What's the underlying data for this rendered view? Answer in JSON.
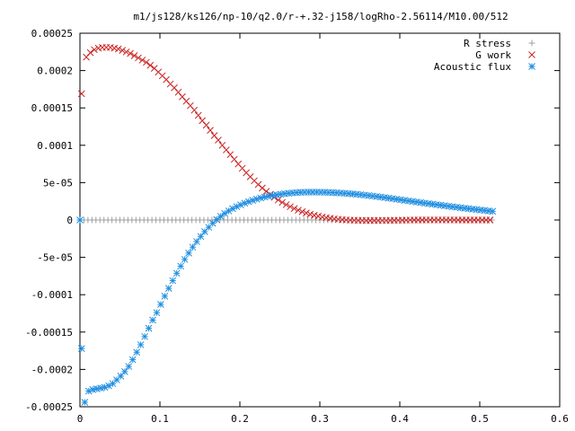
{
  "chart_data": {
    "type": "scatter",
    "title": "m1/js128/ks126/np-10/q2.0/r-+.32-j158/logRho-2.56114/M10.00/512",
    "xlim": [
      0,
      0.6
    ],
    "ylim": [
      -0.00025,
      0.00025
    ],
    "x_ticks": [
      {
        "value": 0,
        "label": "0"
      },
      {
        "value": 0.1,
        "label": "0.1"
      },
      {
        "value": 0.2,
        "label": "0.2"
      },
      {
        "value": 0.3,
        "label": "0.3"
      },
      {
        "value": 0.4,
        "label": "0.4"
      },
      {
        "value": 0.5,
        "label": "0.5"
      },
      {
        "value": 0.6,
        "label": "0.6"
      }
    ],
    "y_ticks": [
      {
        "value": 0.00025,
        "label": "0.00025"
      },
      {
        "value": 0.0002,
        "label": "0.0002"
      },
      {
        "value": 0.00015,
        "label": "0.00015"
      },
      {
        "value": 0.0001,
        "label": "0.0001"
      },
      {
        "value": 5e-05,
        "label": "5e-05"
      },
      {
        "value": 0,
        "label": "0"
      },
      {
        "value": -5e-05,
        "label": "-5e-05"
      },
      {
        "value": -0.0001,
        "label": "-0.0001"
      },
      {
        "value": -0.00015,
        "label": "-0.00015"
      },
      {
        "value": -0.0002,
        "label": "-0.0002"
      },
      {
        "value": -0.00025,
        "label": "-0.00025"
      }
    ],
    "grid": false,
    "legend_position": "top-right",
    "series": [
      {
        "name": "R stress",
        "marker": "plus",
        "color": "#a0a0a0",
        "x": [
          0,
          0.005,
          0.01,
          0.015,
          0.02,
          0.025,
          0.03,
          0.035,
          0.04,
          0.045,
          0.05,
          0.055,
          0.06,
          0.065,
          0.07,
          0.075,
          0.08,
          0.085,
          0.09,
          0.095,
          0.1,
          0.105,
          0.11,
          0.115,
          0.12,
          0.125,
          0.13,
          0.135,
          0.14,
          0.145,
          0.15,
          0.155,
          0.16,
          0.165,
          0.17,
          0.175,
          0.18,
          0.185,
          0.19,
          0.195,
          0.2,
          0.205,
          0.21,
          0.215,
          0.22,
          0.225,
          0.23,
          0.235,
          0.24,
          0.245,
          0.25,
          0.255,
          0.26,
          0.265,
          0.27,
          0.275,
          0.28,
          0.285,
          0.29,
          0.295,
          0.3,
          0.305,
          0.31,
          0.315,
          0.32,
          0.325,
          0.33,
          0.335,
          0.34,
          0.345,
          0.35,
          0.355,
          0.36,
          0.365,
          0.37,
          0.375,
          0.38,
          0.385,
          0.39,
          0.395,
          0.4,
          0.405,
          0.41,
          0.415,
          0.42,
          0.425,
          0.43,
          0.435,
          0.44,
          0.445,
          0.45,
          0.455,
          0.46,
          0.465,
          0.47,
          0.475,
          0.48,
          0.485,
          0.49,
          0.495,
          0.5,
          0.505,
          0.51,
          0.515
        ],
        "y": [
          0,
          0,
          0,
          0,
          0,
          0,
          0,
          0,
          0,
          0,
          0,
          0,
          0,
          0,
          0,
          0,
          0,
          0,
          0,
          0,
          0,
          0,
          0,
          0,
          0,
          0,
          0,
          0,
          0,
          0,
          0,
          0,
          0,
          0,
          0,
          0,
          0,
          0,
          0,
          0,
          0,
          0,
          0,
          0,
          0,
          0,
          0,
          0,
          0,
          0,
          0,
          0,
          0,
          0,
          0,
          0,
          0,
          0,
          0,
          0,
          0,
          0,
          0,
          0,
          0,
          0,
          0,
          0,
          0,
          0,
          0,
          0,
          0,
          0,
          0,
          0,
          0,
          0,
          0,
          0,
          0,
          0,
          0,
          0,
          0,
          0,
          0,
          0,
          0,
          0,
          0,
          0,
          0,
          0,
          0,
          0,
          0,
          0,
          0,
          0,
          0,
          0,
          0,
          0
        ]
      },
      {
        "name": "G work",
        "marker": "cross",
        "color": "#cc2222",
        "x": [
          0.002,
          0.008,
          0.013,
          0.018,
          0.023,
          0.028,
          0.033,
          0.038,
          0.043,
          0.048,
          0.053,
          0.058,
          0.063,
          0.068,
          0.073,
          0.078,
          0.083,
          0.088,
          0.093,
          0.098,
          0.103,
          0.108,
          0.113,
          0.118,
          0.123,
          0.128,
          0.133,
          0.138,
          0.143,
          0.148,
          0.153,
          0.158,
          0.163,
          0.168,
          0.173,
          0.178,
          0.183,
          0.188,
          0.193,
          0.198,
          0.203,
          0.208,
          0.213,
          0.218,
          0.223,
          0.228,
          0.233,
          0.238,
          0.243,
          0.248,
          0.253,
          0.258,
          0.263,
          0.268,
          0.273,
          0.278,
          0.283,
          0.288,
          0.293,
          0.298,
          0.303,
          0.308,
          0.313,
          0.318,
          0.323,
          0.328,
          0.333,
          0.338,
          0.343,
          0.348,
          0.353,
          0.358,
          0.363,
          0.368,
          0.373,
          0.378,
          0.383,
          0.388,
          0.393,
          0.398,
          0.403,
          0.408,
          0.413,
          0.418,
          0.423,
          0.428,
          0.433,
          0.438,
          0.443,
          0.448,
          0.453,
          0.458,
          0.463,
          0.468,
          0.473,
          0.478,
          0.483,
          0.488,
          0.493,
          0.498,
          0.503,
          0.508,
          0.513
        ],
        "y": [
          0.000169,
          0.000218,
          0.000224,
          0.000228,
          0.00023,
          0.000231,
          0.000231,
          0.000231,
          0.00023,
          0.000229,
          0.000227,
          0.000225,
          0.000223,
          0.00022,
          0.000217,
          0.000214,
          0.000211,
          0.000207,
          0.000203,
          0.000198,
          0.000193,
          0.000188,
          0.000182,
          0.000177,
          0.000171,
          0.000165,
          0.000159,
          0.000153,
          0.000147,
          0.00014,
          0.000133,
          0.000127,
          0.00012,
          0.000113,
          0.000107,
          0.0001,
          9.38e-05,
          8.75e-05,
          8.12e-05,
          7.5e-05,
          6.92e-05,
          6.33e-05,
          5.78e-05,
          5.25e-05,
          4.75e-05,
          4.28e-05,
          3.83e-05,
          3.42e-05,
          3.03e-05,
          2.68e-05,
          2.35e-05,
          2.05e-05,
          1.78e-05,
          1.53e-05,
          1.31e-05,
          1.11e-05,
          9.3e-06,
          7.7e-06,
          6.3e-06,
          5.1e-06,
          4e-06,
          3.1e-06,
          2.3e-06,
          1.6e-06,
          1e-06,
          5e-07,
          1e-07,
          -2e-07,
          -4e-07,
          -6e-07,
          -7e-07,
          -8e-07,
          -8e-07,
          -8e-07,
          -8e-07,
          -7e-07,
          -7e-07,
          -6e-07,
          -5e-07,
          -4e-07,
          -3e-07,
          -2e-07,
          -1e-07,
          0,
          0,
          0,
          1e-07,
          1e-07,
          1e-07,
          1e-07,
          1e-07,
          1e-07,
          1e-07,
          1e-07,
          0,
          0,
          0,
          0,
          0,
          0,
          0,
          0,
          0
        ]
      },
      {
        "name": "Acoustic flux",
        "marker": "star",
        "color": "#1f8ee0",
        "x": [
          0,
          0.002,
          0.006,
          0.011,
          0.016,
          0.021,
          0.026,
          0.031,
          0.036,
          0.041,
          0.046,
          0.051,
          0.056,
          0.061,
          0.066,
          0.071,
          0.076,
          0.081,
          0.086,
          0.091,
          0.096,
          0.101,
          0.106,
          0.111,
          0.116,
          0.121,
          0.126,
          0.131,
          0.136,
          0.141,
          0.146,
          0.151,
          0.156,
          0.161,
          0.166,
          0.171,
          0.176,
          0.181,
          0.186,
          0.191,
          0.196,
          0.201,
          0.206,
          0.211,
          0.216,
          0.221,
          0.226,
          0.231,
          0.236,
          0.241,
          0.246,
          0.251,
          0.256,
          0.261,
          0.266,
          0.271,
          0.276,
          0.281,
          0.286,
          0.291,
          0.296,
          0.301,
          0.306,
          0.311,
          0.316,
          0.321,
          0.326,
          0.331,
          0.336,
          0.341,
          0.346,
          0.351,
          0.356,
          0.361,
          0.366,
          0.371,
          0.376,
          0.381,
          0.386,
          0.391,
          0.396,
          0.401,
          0.406,
          0.411,
          0.416,
          0.421,
          0.426,
          0.431,
          0.436,
          0.441,
          0.446,
          0.451,
          0.456,
          0.461,
          0.466,
          0.471,
          0.476,
          0.481,
          0.486,
          0.491,
          0.496,
          0.501,
          0.506,
          0.511,
          0.516
        ],
        "y": [
          0,
          -0.000172,
          -0.000244,
          -0.000229,
          -0.000227,
          -0.000226,
          -0.000225,
          -0.000224,
          -0.000222,
          -0.000219,
          -0.000214,
          -0.000209,
          -0.000203,
          -0.000196,
          -0.000187,
          -0.000177,
          -0.000167,
          -0.000156,
          -0.000145,
          -0.000134,
          -0.000124,
          -0.000113,
          -0.000102,
          -9.15e-05,
          -8.12e-05,
          -7.13e-05,
          -6.18e-05,
          -5.28e-05,
          -4.43e-05,
          -3.63e-05,
          -2.89e-05,
          -2.2e-05,
          -1.56e-05,
          -9.7e-06,
          -4.4e-06,
          5e-07,
          4.8e-06,
          8.7e-06,
          1.21e-05,
          1.52e-05,
          1.79e-05,
          2.03e-05,
          2.25e-05,
          2.45e-05,
          2.63e-05,
          2.79e-05,
          2.94e-05,
          3.07e-05,
          3.18e-05,
          3.28e-05,
          3.37e-05,
          3.45e-05,
          3.52e-05,
          3.58e-05,
          3.63e-05,
          3.67e-05,
          3.7e-05,
          3.72e-05,
          3.73e-05,
          3.73e-05,
          3.73e-05,
          3.72e-05,
          3.71e-05,
          3.69e-05,
          3.67e-05,
          3.64e-05,
          3.61e-05,
          3.57e-05,
          3.53e-05,
          3.49e-05,
          3.44e-05,
          3.39e-05,
          3.33e-05,
          3.27e-05,
          3.21e-05,
          3.14e-05,
          3.07e-05,
          3e-05,
          2.93e-05,
          2.86e-05,
          2.78e-05,
          2.71e-05,
          2.63e-05,
          2.56e-05,
          2.48e-05,
          2.41e-05,
          2.33e-05,
          2.26e-05,
          2.19e-05,
          2.12e-05,
          2.05e-05,
          1.98e-05,
          1.91e-05,
          1.84e-05,
          1.77e-05,
          1.71e-05,
          1.64e-05,
          1.58e-05,
          1.52e-05,
          1.46e-05,
          1.4e-05,
          1.34e-05,
          1.28e-05,
          1.22e-05,
          1.16e-05
        ]
      }
    ]
  }
}
